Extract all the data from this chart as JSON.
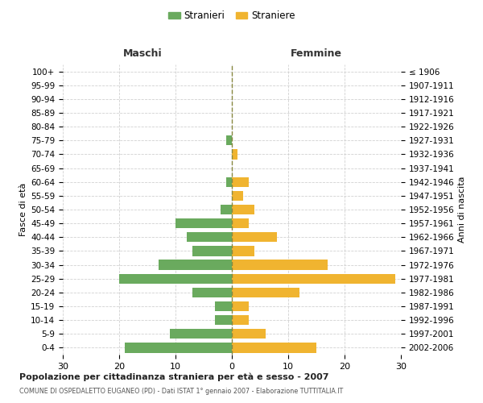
{
  "age_groups": [
    "0-4",
    "5-9",
    "10-14",
    "15-19",
    "20-24",
    "25-29",
    "30-34",
    "35-39",
    "40-44",
    "45-49",
    "50-54",
    "55-59",
    "60-64",
    "65-69",
    "70-74",
    "75-79",
    "80-84",
    "85-89",
    "90-94",
    "95-99",
    "100+"
  ],
  "birth_years": [
    "2002-2006",
    "1997-2001",
    "1992-1996",
    "1987-1991",
    "1982-1986",
    "1977-1981",
    "1972-1976",
    "1967-1971",
    "1962-1966",
    "1957-1961",
    "1952-1956",
    "1947-1951",
    "1942-1946",
    "1937-1941",
    "1932-1936",
    "1927-1931",
    "1922-1926",
    "1917-1921",
    "1912-1916",
    "1907-1911",
    "≤ 1906"
  ],
  "maschi": [
    19,
    11,
    3,
    3,
    7,
    20,
    13,
    7,
    8,
    10,
    2,
    0,
    1,
    0,
    0,
    1,
    0,
    0,
    0,
    0,
    0
  ],
  "femmine": [
    15,
    6,
    3,
    3,
    12,
    29,
    17,
    4,
    8,
    3,
    4,
    2,
    3,
    0,
    1,
    0,
    0,
    0,
    0,
    0,
    0
  ],
  "maschi_color": "#6aaa5e",
  "femmine_color": "#f0b430",
  "title": "Popolazione per cittadinanza straniera per età e sesso - 2007",
  "subtitle": "COMUNE DI OSPEDALETTO EUGANEO (PD) - Dati ISTAT 1° gennaio 2007 - Elaborazione TUTTITALIA.IT",
  "ylabel_left": "Fasce di età",
  "ylabel_right": "Anni di nascita",
  "header_left": "Maschi",
  "header_right": "Femmine",
  "legend_maschi": "Stranieri",
  "legend_femmine": "Straniere",
  "xlim": 30,
  "background_color": "#ffffff",
  "grid_color": "#cccccc",
  "bar_height": 0.72
}
